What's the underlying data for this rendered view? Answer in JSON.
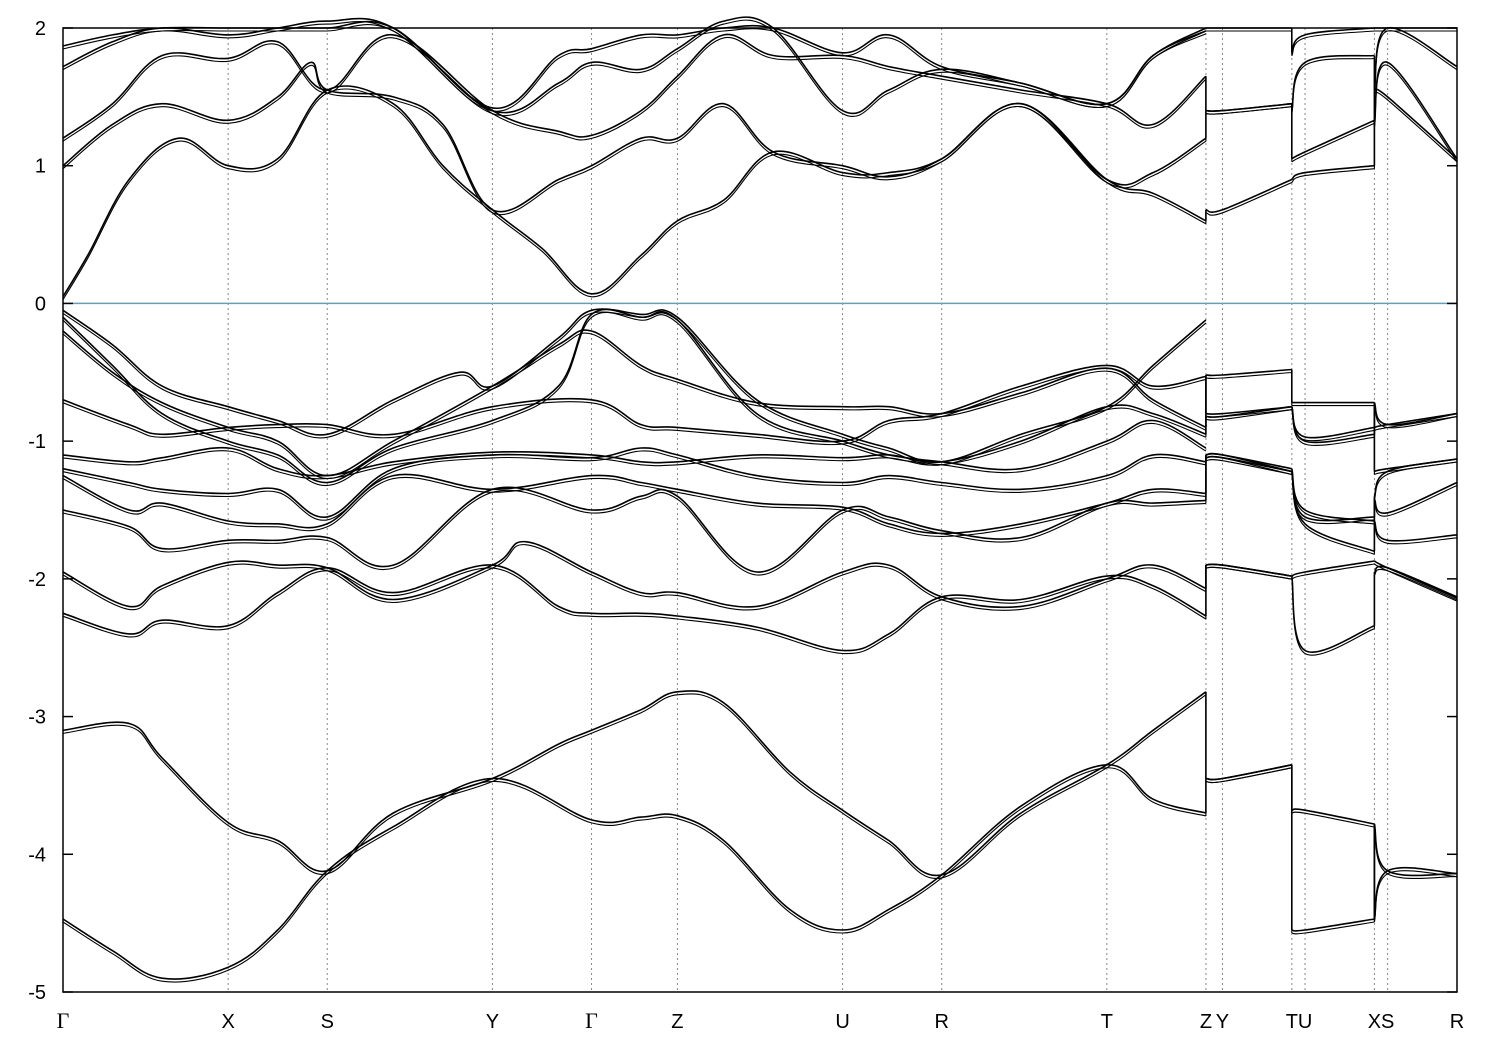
{
  "chart_data": {
    "type": "line",
    "title": "",
    "xlabel": "",
    "ylabel": "",
    "ylim": [
      -5,
      2
    ],
    "yticks": [
      {
        "value": 2,
        "label": "2"
      },
      {
        "value": 1,
        "label": "1"
      },
      {
        "value": 0,
        "label": "0"
      },
      {
        "value": -1,
        "label": "-1"
      },
      {
        "value": -2,
        "label": "-2"
      },
      {
        "value": -3,
        "label": "-3"
      },
      {
        "value": -4,
        "label": "-4"
      },
      {
        "value": -5,
        "label": "-5"
      }
    ],
    "kpoints": [
      {
        "k": 0.0,
        "label": "Γ"
      },
      {
        "k": 1.0,
        "label": "X"
      },
      {
        "k": 1.6,
        "label": "S"
      },
      {
        "k": 2.6,
        "label": "Y"
      },
      {
        "k": 3.2,
        "label": "Γ"
      },
      {
        "k": 3.72,
        "label": "Z"
      },
      {
        "k": 4.72,
        "label": "U"
      },
      {
        "k": 5.32,
        "label": "R"
      },
      {
        "k": 6.32,
        "label": "T"
      },
      {
        "k": 6.92,
        "label": "Z"
      },
      {
        "k": 7.02,
        "label": "Y"
      },
      {
        "k": 7.44,
        "label": "T"
      },
      {
        "k": 7.52,
        "label": "U"
      },
      {
        "k": 7.94,
        "label": "X"
      },
      {
        "k": 8.02,
        "label": "S"
      },
      {
        "k": 8.44,
        "label": "R"
      }
    ],
    "xlim": [
      0,
      8.44
    ],
    "fermi_level": 0,
    "fermi_color": "#4aa8c8",
    "line_color": "#000000",
    "grid": "vertical dotted lines at high-symmetry points",
    "discontinuities": [
      6.92,
      7.44,
      7.94
    ],
    "bands": [
      {
        "k": [
          0,
          0.3,
          0.6,
          1.0,
          1.3,
          1.6,
          2.0,
          2.6,
          3.2,
          3.5,
          3.72,
          4.0,
          4.4,
          4.72,
          5.0,
          5.32,
          5.8,
          6.32,
          6.6,
          6.92,
          6.92,
          7.02,
          7.44,
          7.44,
          7.52,
          7.94,
          7.94,
          8.02,
          8.44
        ],
        "e": [
          -4.47,
          -4.7,
          -4.9,
          -4.82,
          -4.55,
          -4.12,
          -3.8,
          -3.45,
          -3.75,
          -3.73,
          -3.72,
          -3.9,
          -4.4,
          -4.55,
          -4.4,
          -4.15,
          -3.65,
          -3.35,
          -3.6,
          -3.7,
          -3.45,
          -3.45,
          -3.35,
          -3.68,
          -3.68,
          -3.78,
          -4.47,
          -4.12,
          -4.14
        ]
      },
      {
        "k": [
          0,
          0.4,
          0.6,
          1.0,
          1.3,
          1.6,
          2.0,
          2.6,
          3.0,
          3.2,
          3.5,
          3.72,
          4.0,
          4.4,
          4.72,
          5.0,
          5.32,
          5.8,
          6.32,
          6.6,
          6.92,
          6.92,
          7.02,
          7.44,
          7.44,
          7.52,
          7.94,
          7.94,
          8.02,
          8.44
        ],
        "e": [
          -3.1,
          -3.05,
          -3.3,
          -3.77,
          -3.9,
          -4.12,
          -3.7,
          -3.45,
          -3.2,
          -3.1,
          -2.95,
          -2.82,
          -2.9,
          -3.4,
          -3.68,
          -3.9,
          -4.15,
          -3.7,
          -3.35,
          -3.1,
          -2.82,
          -3.45,
          -3.45,
          -3.35,
          -4.55,
          -4.55,
          -4.47,
          -3.78,
          -4.12,
          -4.14
        ]
      },
      {
        "k": [
          0,
          0.4,
          0.6,
          1.0,
          1.3,
          1.6,
          2.0,
          2.6,
          3.0,
          3.2,
          3.5,
          3.72,
          4.2,
          4.72,
          5.0,
          5.32,
          5.8,
          6.32,
          6.6,
          6.92,
          6.92,
          7.02,
          7.44,
          7.44,
          7.52,
          7.94,
          7.94,
          8.02,
          8.44
        ],
        "e": [
          -2.25,
          -2.4,
          -2.3,
          -2.34,
          -2.1,
          -1.92,
          -2.1,
          -1.9,
          -2.2,
          -2.25,
          -2.25,
          -2.27,
          -2.35,
          -2.52,
          -2.4,
          -2.13,
          -2.15,
          -1.98,
          -2.05,
          -2.27,
          -1.9,
          -1.9,
          -1.98,
          -1.98,
          -2.52,
          -2.34,
          -1.95,
          -1.92,
          -2.13
        ]
      },
      {
        "k": [
          0,
          0.4,
          0.6,
          1.0,
          1.3,
          1.6,
          2.0,
          2.6,
          2.8,
          3.2,
          3.5,
          3.72,
          4.2,
          4.72,
          5.0,
          5.32,
          5.8,
          6.32,
          6.6,
          6.92,
          6.92,
          7.02,
          7.44,
          7.44,
          7.52,
          7.94,
          7.94,
          8.02,
          8.44
        ],
        "e": [
          -1.95,
          -2.2,
          -2.05,
          -1.88,
          -1.9,
          -1.92,
          -2.15,
          -1.9,
          -1.73,
          -1.95,
          -2.1,
          -2.1,
          -2.2,
          -1.95,
          -1.9,
          -2.13,
          -2.2,
          -2.0,
          -1.9,
          -2.07,
          -1.9,
          -1.9,
          -1.98,
          -1.98,
          -1.95,
          -1.87,
          -1.87,
          -1.92,
          -2.14
        ]
      },
      {
        "k": [
          0,
          0.4,
          0.6,
          1.0,
          1.3,
          1.6,
          2.0,
          2.6,
          3.2,
          3.5,
          3.72,
          4.2,
          4.72,
          5.0,
          5.32,
          5.8,
          6.32,
          6.6,
          6.92,
          6.92,
          7.02,
          7.44,
          7.44,
          7.52,
          7.94,
          7.94,
          8.02,
          8.44
        ],
        "e": [
          -1.5,
          -1.62,
          -1.78,
          -1.72,
          -1.72,
          -1.7,
          -1.9,
          -1.35,
          -1.5,
          -1.4,
          -1.4,
          -1.95,
          -1.5,
          -1.55,
          -1.65,
          -1.7,
          -1.45,
          -1.45,
          -1.43,
          -1.1,
          -1.1,
          -1.22,
          -1.22,
          -1.6,
          -1.8,
          -1.58,
          -1.72,
          -1.68
        ]
      },
      {
        "k": [
          0,
          0.4,
          0.6,
          1.0,
          1.3,
          1.6,
          2.0,
          2.6,
          3.2,
          3.5,
          3.72,
          4.2,
          4.72,
          5.0,
          5.32,
          5.8,
          6.32,
          6.6,
          6.92,
          6.92,
          7.02,
          7.44,
          7.44,
          7.52,
          7.94,
          7.94,
          8.02,
          8.44
        ],
        "e": [
          -1.25,
          -1.5,
          -1.45,
          -1.58,
          -1.6,
          -1.6,
          -1.25,
          -1.35,
          -1.25,
          -1.3,
          -1.35,
          -1.45,
          -1.48,
          -1.6,
          -1.67,
          -1.6,
          -1.45,
          -1.35,
          -1.38,
          -1.1,
          -1.1,
          -1.2,
          -1.2,
          -1.5,
          -1.58,
          -1.42,
          -1.52,
          -1.3
        ]
      },
      {
        "k": [
          0,
          0.4,
          0.6,
          1.0,
          1.3,
          1.6,
          2.0,
          2.6,
          3.2,
          3.5,
          3.72,
          4.2,
          4.72,
          5.0,
          5.32,
          5.8,
          6.32,
          6.6,
          6.92,
          6.92,
          7.02,
          7.44,
          7.44,
          7.52,
          7.94,
          7.94,
          8.02,
          8.44
        ],
        "e": [
          -1.2,
          -1.3,
          -1.35,
          -1.38,
          -1.35,
          -1.55,
          -1.2,
          -1.1,
          -1.12,
          -1.05,
          -1.1,
          -1.25,
          -1.3,
          -1.25,
          -1.3,
          -1.35,
          -1.25,
          -1.1,
          -1.15,
          -1.12,
          -1.12,
          -1.22,
          -1.22,
          -1.55,
          -1.55,
          -1.4,
          -1.22,
          -1.13
        ]
      },
      {
        "k": [
          0,
          0.4,
          0.6,
          1.0,
          1.3,
          1.6,
          2.0,
          2.6,
          3.2,
          3.5,
          3.72,
          4.2,
          4.72,
          5.0,
          5.32,
          5.8,
          6.32,
          6.6,
          6.92,
          6.92,
          7.02,
          7.44,
          7.44,
          7.52,
          7.94,
          7.94,
          8.02,
          8.44
        ],
        "e": [
          -1.1,
          -1.15,
          -1.12,
          -1.05,
          -1.2,
          -1.25,
          -1.15,
          -1.08,
          -1.1,
          -1.15,
          -1.15,
          -1.1,
          -1.12,
          -1.1,
          -1.15,
          -1.0,
          -0.75,
          -0.8,
          -0.95,
          -0.82,
          -0.82,
          -0.75,
          -0.75,
          -1.0,
          -0.95,
          -0.72,
          -0.88,
          -0.8
        ]
      },
      {
        "k": [
          0,
          0.4,
          0.6,
          1.0,
          1.3,
          1.6,
          2.0,
          2.6,
          3.2,
          3.5,
          3.72,
          4.2,
          4.72,
          5.0,
          5.32,
          5.8,
          6.32,
          6.6,
          6.92,
          6.92,
          7.02,
          7.44,
          7.44,
          7.52,
          7.94,
          7.94,
          8.02,
          8.44
        ],
        "e": [
          -0.7,
          -0.88,
          -0.95,
          -0.9,
          -0.88,
          -0.88,
          -0.95,
          -0.75,
          -0.7,
          -0.88,
          -0.9,
          -0.95,
          -1.0,
          -0.85,
          -0.8,
          -0.6,
          -0.45,
          -0.6,
          -0.53,
          -0.8,
          -0.8,
          -0.75,
          -0.75,
          -0.97,
          -0.9,
          -0.9,
          -0.88,
          -0.8
        ]
      },
      {
        "k": [
          0,
          0.3,
          0.6,
          1.0,
          1.3,
          1.6,
          2.0,
          2.6,
          3.0,
          3.2,
          3.5,
          3.72,
          4.2,
          4.72,
          5.0,
          5.32,
          5.8,
          6.32,
          6.6,
          6.92,
          6.92,
          7.02,
          7.44,
          7.44,
          7.52,
          7.94,
          7.94,
          8.02,
          8.44
        ],
        "e": [
          -0.2,
          -0.5,
          -0.72,
          -0.9,
          -1.0,
          -1.25,
          -1.0,
          -0.6,
          -0.3,
          -0.2,
          -0.45,
          -0.55,
          -0.72,
          -0.75,
          -0.75,
          -0.8,
          -0.65,
          -0.47,
          -0.7,
          -0.9,
          -0.52,
          -0.52,
          -0.48,
          -0.72,
          -0.72,
          -0.72,
          -1.22,
          -1.2,
          -1.13
        ]
      },
      {
        "k": [
          0,
          0.3,
          0.6,
          1.0,
          1.3,
          1.6,
          2.0,
          2.4,
          2.6,
          3.0,
          3.2,
          3.5,
          3.72,
          4.2,
          4.72,
          5.0,
          5.32,
          5.8,
          6.32,
          6.6,
          6.92
        ],
        "e": [
          -0.05,
          -0.3,
          -0.6,
          -0.75,
          -0.85,
          -0.95,
          -0.7,
          -0.5,
          -0.6,
          -0.25,
          -0.05,
          -0.08,
          -0.1,
          -0.7,
          -0.95,
          -1.05,
          -1.15,
          -0.95,
          -0.75,
          -0.45,
          -0.12
        ]
      },
      {
        "k": [
          0,
          0.3,
          0.6,
          1.0,
          1.3,
          1.6,
          2.0,
          2.6,
          3.0,
          3.2,
          3.5,
          3.72,
          4.2,
          4.72,
          5.0,
          5.32,
          5.8,
          6.32,
          6.6,
          6.92
        ],
        "e": [
          -0.1,
          -0.45,
          -0.8,
          -1.0,
          -1.1,
          -1.3,
          -1.05,
          -0.85,
          -0.6,
          -0.08,
          -0.1,
          -0.12,
          -0.8,
          -1.0,
          -1.1,
          -1.15,
          -1.2,
          -1.0,
          -0.85,
          -1.05
        ]
      },
      {
        "k": [
          0,
          0.15,
          0.4,
          0.7,
          1.0,
          1.3,
          1.6,
          2.0,
          2.3,
          2.6,
          2.9,
          3.2,
          3.5,
          3.72,
          4.0,
          4.3,
          4.72,
          5.0,
          5.32,
          5.8,
          6.32,
          6.6,
          6.92,
          6.92,
          7.02,
          7.44,
          7.44,
          7.52,
          7.94,
          7.94,
          8.02,
          8.44
        ],
        "e": [
          0.05,
          0.35,
          0.9,
          1.2,
          1.0,
          1.05,
          1.55,
          1.45,
          1.0,
          0.68,
          0.4,
          0.07,
          0.35,
          0.6,
          0.75,
          1.1,
          0.95,
          0.95,
          1.05,
          1.45,
          0.9,
          0.8,
          0.6,
          0.68,
          0.68,
          0.9,
          0.9,
          0.95,
          1.0,
          1.55,
          1.5,
          1.05
        ]
      },
      {
        "k": [
          0,
          0.3,
          0.6,
          1.0,
          1.3,
          1.5,
          1.6,
          2.0,
          2.3,
          2.6,
          3.0,
          3.2,
          3.5,
          3.72,
          4.0,
          4.3,
          4.72,
          5.0,
          5.32,
          5.8,
          6.32,
          6.6,
          6.92,
          6.92,
          7.02,
          7.44,
          7.44,
          7.52,
          7.94,
          7.94,
          8.02,
          8.44
        ],
        "e": [
          1.0,
          1.3,
          1.45,
          1.33,
          1.5,
          1.75,
          1.55,
          1.5,
          1.3,
          0.68,
          0.9,
          1.0,
          1.2,
          1.2,
          1.45,
          1.1,
          1.0,
          0.92,
          1.05,
          1.45,
          0.9,
          0.95,
          1.2,
          1.4,
          1.4,
          1.45,
          1.05,
          1.1,
          1.33,
          1.3,
          1.75,
          1.05
        ]
      },
      {
        "k": [
          0,
          0.3,
          0.6,
          1.0,
          1.3,
          1.6,
          2.0,
          2.6,
          3.0,
          3.2,
          3.5,
          3.72,
          4.0,
          4.3,
          4.72,
          5.0,
          5.32,
          5.8,
          6.32,
          6.6,
          6.92,
          6.92,
          7.02,
          7.44,
          7.44,
          7.52,
          7.94,
          7.94,
          8.02,
          8.44
        ],
        "e": [
          1.2,
          1.45,
          1.8,
          1.78,
          1.9,
          1.55,
          1.95,
          1.4,
          1.25,
          1.22,
          1.4,
          1.65,
          1.95,
          1.8,
          1.8,
          1.72,
          1.65,
          1.55,
          1.45,
          1.3,
          1.65,
          1.4,
          1.4,
          1.45,
          1.4,
          1.75,
          1.8,
          1.55,
          2.0,
          1.72
        ]
      },
      {
        "k": [
          0,
          0.3,
          0.6,
          1.0,
          1.3,
          1.6,
          2.0,
          2.6,
          3.0,
          3.2,
          3.5,
          3.72,
          4.0,
          4.3,
          4.72,
          5.0,
          5.32,
          5.8,
          6.32,
          6.6,
          6.92,
          6.92,
          7.02,
          7.44,
          7.44,
          7.52,
          7.94,
          7.94,
          8.02,
          8.44
        ],
        "e": [
          1.72,
          1.9,
          2.0,
          1.95,
          2.0,
          2.05,
          2.0,
          1.4,
          1.6,
          1.75,
          1.7,
          1.85,
          2.05,
          2.0,
          1.4,
          1.55,
          1.7,
          1.6,
          1.45,
          1.8,
          2.0,
          2.0,
          2.0,
          2.0,
          1.82,
          1.95,
          2.0,
          2.0,
          2.0,
          2.0
        ]
      },
      {
        "k": [
          0,
          0.3,
          0.6,
          1.0,
          1.3,
          1.6,
          2.0,
          2.6,
          3.0,
          3.2,
          3.5,
          3.72,
          4.0,
          4.3,
          4.72,
          5.0,
          5.32,
          5.8,
          6.32,
          6.6,
          6.92
        ],
        "e": [
          1.87,
          1.95,
          2.0,
          2.0,
          2.0,
          2.0,
          2.0,
          1.42,
          1.8,
          1.85,
          1.95,
          1.95,
          2.0,
          2.0,
          1.82,
          1.95,
          1.72,
          1.6,
          1.45,
          1.8,
          1.98
        ]
      }
    ]
  }
}
